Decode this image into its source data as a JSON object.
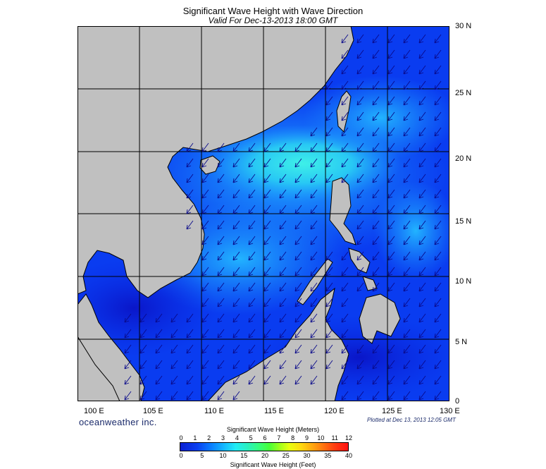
{
  "title": "Significant Wave Height with Wave Direction",
  "subtitle": "Valid For Dec-13-2013 18:00 GMT",
  "latitude_labels": [
    "30 N",
    "25 N",
    "20 N",
    "15 N",
    "10 N",
    "5 N",
    "0"
  ],
  "longitude_labels": [
    "100 E",
    "105 E",
    "110 E",
    "115 E",
    "120 E",
    "125 E",
    "130 E"
  ],
  "brand": "oceanweather inc.",
  "plotted_note": "Plotted at Dec 13, 2013 12:05 GMT",
  "colorbar": {
    "meters_title": "Significant Wave Height (Meters)",
    "meters_ticks": [
      "0",
      "1",
      "2",
      "3",
      "4",
      "5",
      "6",
      "7",
      "8",
      "9",
      "10",
      "11",
      "12"
    ],
    "feet_ticks": [
      "0",
      "5",
      "10",
      "15",
      "20",
      "25",
      "30",
      "35",
      "40"
    ],
    "feet_title": "Significant Wave Height (Feet)"
  },
  "colors": {
    "land": "#c0c0c0",
    "sea_low": "#0a2ae6",
    "sea_mid": "#1a8cff",
    "sea_high": "#2ee8f0"
  },
  "wave_direction": "southwest"
}
